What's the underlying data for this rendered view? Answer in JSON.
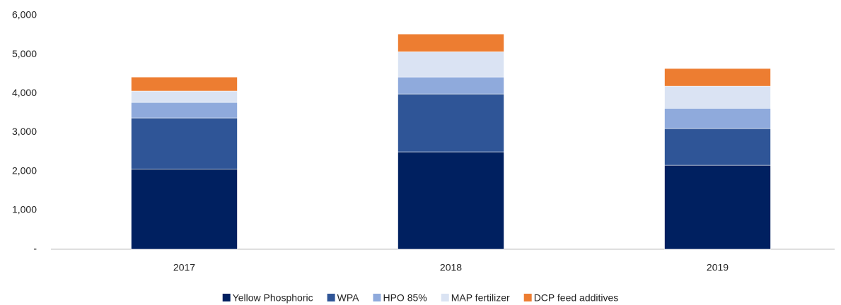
{
  "chart_data": {
    "type": "bar",
    "stacked": true,
    "categories": [
      "2017",
      "2018",
      "2019"
    ],
    "series": [
      {
        "name": "Yellow Phosphoric",
        "color": "#002060",
        "values": [
          2060,
          2500,
          2155
        ]
      },
      {
        "name": "WPA",
        "color": "#2f5597",
        "values": [
          1310,
          1485,
          945
        ]
      },
      {
        "name": "HPO 85%",
        "color": "#8faadc",
        "values": [
          400,
          435,
          520
        ]
      },
      {
        "name": "MAP fertilizer",
        "color": "#dae3f3",
        "values": [
          290,
          650,
          565
        ]
      },
      {
        "name": "DCP feed additives",
        "color": "#ed7d31",
        "values": [
          360,
          455,
          455
        ]
      }
    ],
    "ylim": [
      0,
      6000
    ],
    "yticks": [
      {
        "value": 0,
        "label": "-"
      },
      {
        "value": 1000,
        "label": "1,000"
      },
      {
        "value": 2000,
        "label": "2,000"
      },
      {
        "value": 3000,
        "label": "3,000"
      },
      {
        "value": 4000,
        "label": "4,000"
      },
      {
        "value": 5000,
        "label": "5,000"
      },
      {
        "value": 6000,
        "label": "6,000"
      }
    ],
    "grid": false,
    "legend": "bottom"
  }
}
